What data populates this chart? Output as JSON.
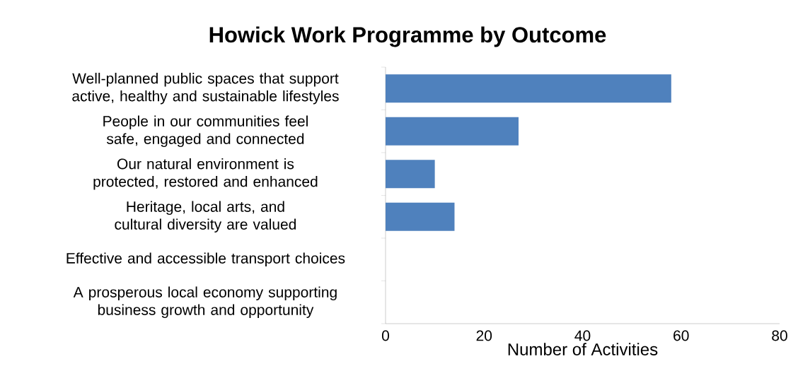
{
  "chart_data": {
    "type": "bar",
    "orientation": "horizontal",
    "title": "Howick Work Programme by Outcome",
    "xlabel": "Number of Activities",
    "categories": [
      "Well-planned public spaces that support active, healthy and sustainable lifestyles",
      "People in our communities feel safe, engaged and connected",
      "Our natural environment is protected, restored and enhanced",
      "Heritage, local arts, and cultural diversity are valued",
      "Effective and accessible transport choices",
      "A prosperous local economy supporting business growth and opportunity"
    ],
    "values": [
      58,
      27,
      10,
      14,
      0,
      0
    ],
    "color": "#4f81bd",
    "xlim": [
      0,
      80
    ],
    "xticks": [
      0,
      20,
      40,
      60,
      80
    ]
  }
}
